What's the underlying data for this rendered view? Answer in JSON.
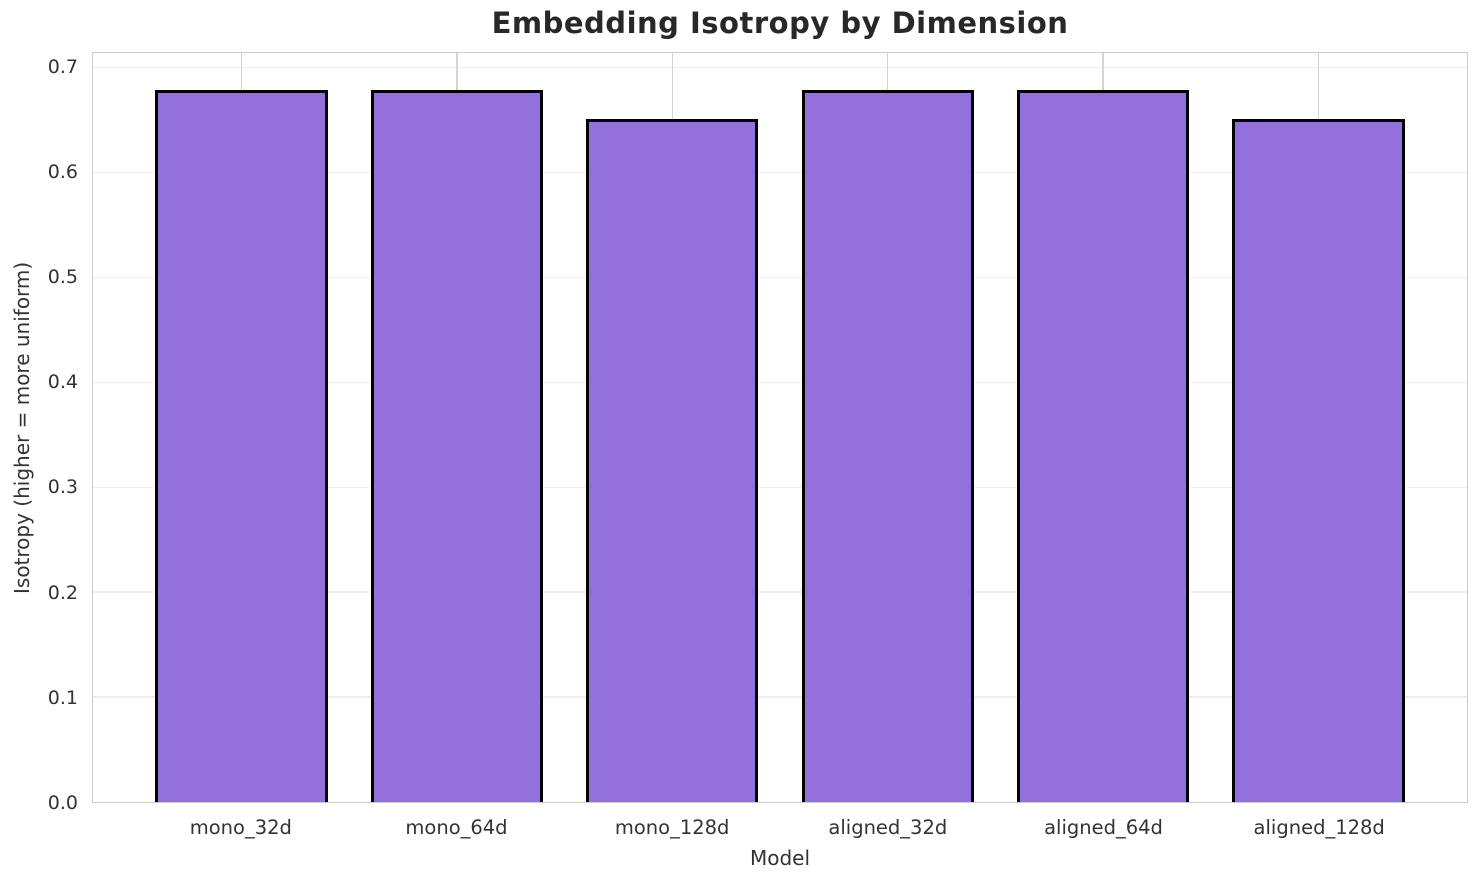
{
  "chart_data": {
    "type": "bar",
    "title": "Embedding Isotropy by Dimension",
    "xlabel": "Model",
    "ylabel": "Isotropy (higher = more uniform)",
    "categories": [
      "mono_32d",
      "mono_64d",
      "mono_128d",
      "aligned_32d",
      "aligned_64d",
      "aligned_128d"
    ],
    "values": [
      0.679,
      0.679,
      0.651,
      0.679,
      0.679,
      0.651
    ],
    "ylim": [
      0,
      0.714
    ],
    "yticks": [
      0.0,
      0.1,
      0.2,
      0.3,
      0.4,
      0.5,
      0.6,
      0.7
    ],
    "ytick_labels": [
      "0.0",
      "0.1",
      "0.2",
      "0.3",
      "0.4",
      "0.5",
      "0.6",
      "0.7"
    ],
    "grid": "horizontal light, vertical at category centers",
    "legend": "none",
    "bar_color": "#9370db",
    "bar_edge_color": "#000000",
    "grid_h_color": "#eeeeee",
    "grid_v_color": "#d4d4d4",
    "spine_color": "#cccccc",
    "text_color": "#333333",
    "title_color": "#282828",
    "bar_width_frac": 0.8,
    "x_pad_units": 0.69
  }
}
